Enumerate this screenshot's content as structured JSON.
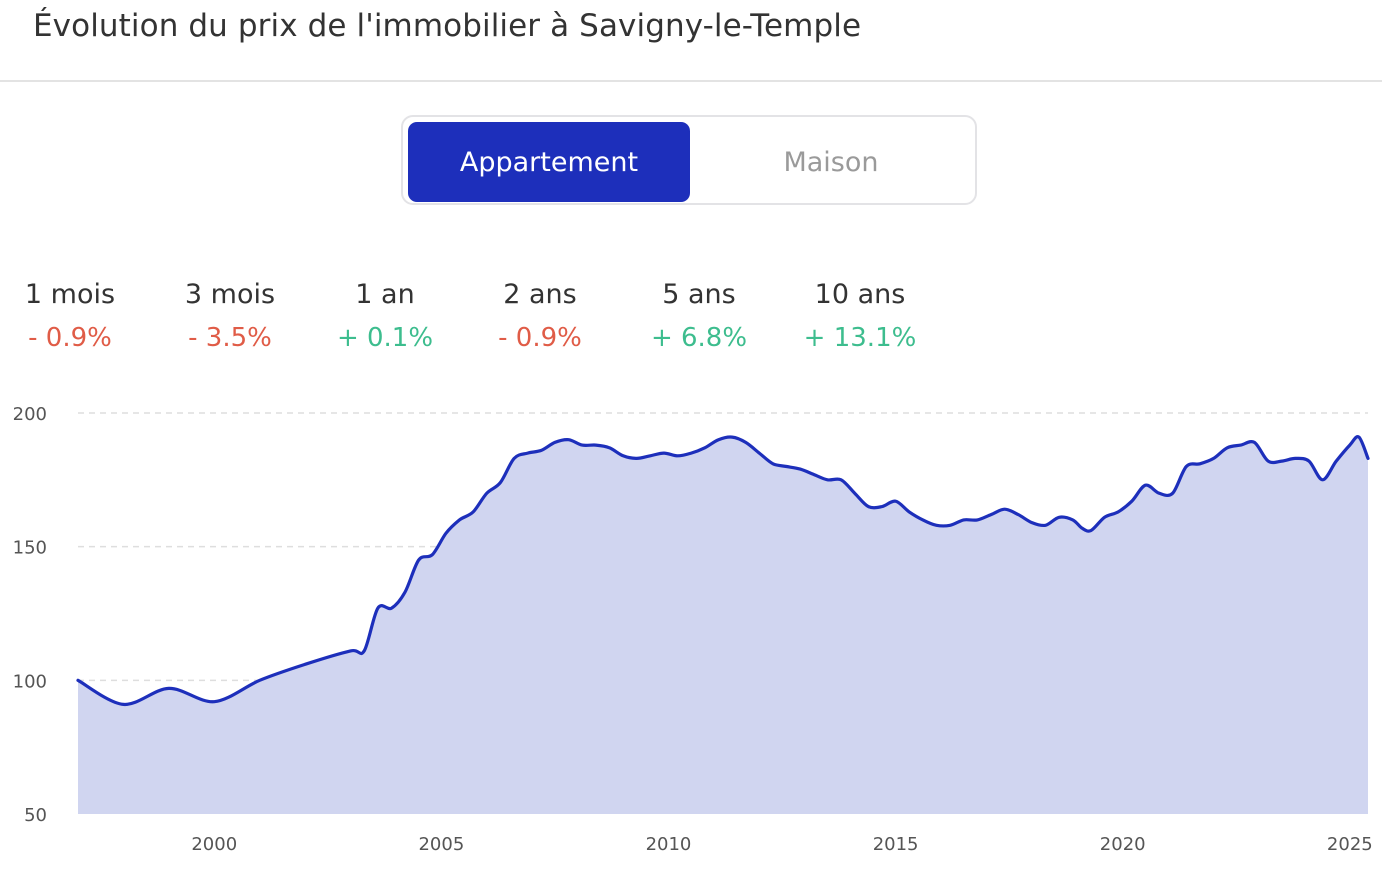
{
  "title": "Évolution du prix de l'immobilier à Savigny-le-Temple",
  "toggle": {
    "active_label": "Appartement",
    "inactive_label": "Maison",
    "selected": "Appartement"
  },
  "stats": [
    {
      "label": "1 mois",
      "value": "- 0.9%",
      "trend": "negative"
    },
    {
      "label": "3 mois",
      "value": "- 3.5%",
      "trend": "negative"
    },
    {
      "label": "1 an",
      "value": "+ 0.1%",
      "trend": "positive"
    },
    {
      "label": "2 ans",
      "value": "- 0.9%",
      "trend": "negative"
    },
    {
      "label": "5 ans",
      "value": "+ 6.8%",
      "trend": "positive"
    },
    {
      "label": "10 ans",
      "value": "+ 13.1%",
      "trend": "positive"
    }
  ],
  "colors": {
    "line": "#1d2fbb",
    "area": "#d0d5f0",
    "negative": "#e05c47",
    "positive": "#3dbd8e",
    "grid": "#dedede"
  },
  "chart_data": {
    "type": "area",
    "title": "",
    "xlabel": "",
    "ylabel": "",
    "xlim": [
      1997.0,
      2025.4
    ],
    "ylim": [
      50,
      200
    ],
    "yticks": [
      50,
      100,
      150,
      200
    ],
    "xticks": [
      2000,
      2005,
      2010,
      2015,
      2020,
      2025
    ],
    "grid": "horizontal dashed",
    "series": [
      {
        "x": [
          1997.0,
          1998.0,
          1999.0,
          2000.0,
          2001.0,
          2002.0,
          2003.0,
          2003.3,
          2003.6,
          2003.9,
          2004.2,
          2004.5,
          2004.8,
          2005.1,
          2005.4,
          2005.7,
          2006.0,
          2006.3,
          2006.6,
          2006.9,
          2007.2,
          2007.5,
          2007.8,
          2008.1,
          2008.4,
          2008.7,
          2009.0,
          2009.3,
          2009.6,
          2009.9,
          2010.2,
          2010.5,
          2010.8,
          2011.1,
          2011.4,
          2011.7,
          2012.0,
          2012.3,
          2012.6,
          2012.9,
          2013.2,
          2013.5,
          2013.8,
          2014.1,
          2014.4,
          2014.7,
          2015.0,
          2015.3,
          2015.6,
          2015.9,
          2016.2,
          2016.5,
          2016.8,
          2017.1,
          2017.4,
          2017.7,
          2018.0,
          2018.3,
          2018.6,
          2018.9,
          2019.1,
          2019.3,
          2019.6,
          2019.9,
          2020.2,
          2020.5,
          2020.8,
          2021.1,
          2021.4,
          2021.7,
          2022.0,
          2022.3,
          2022.6,
          2022.9,
          2023.2,
          2023.5,
          2023.8,
          2024.1,
          2024.4,
          2024.7,
          2025.0,
          2025.2,
          2025.4
        ],
        "values": [
          100,
          91,
          97,
          92,
          100,
          106,
          111,
          111,
          127,
          127,
          133,
          145,
          147,
          155,
          160,
          163,
          170,
          174,
          183,
          185,
          186,
          189,
          190,
          188,
          188,
          187,
          184,
          183,
          184,
          185,
          184,
          185,
          187,
          190,
          191,
          189,
          185,
          181,
          180,
          179,
          177,
          175,
          175,
          170,
          165,
          165,
          167,
          163,
          160,
          158,
          158,
          160,
          160,
          162,
          164,
          162,
          159,
          158,
          161,
          160,
          157,
          156,
          161,
          163,
          167,
          173,
          170,
          170,
          180,
          181,
          183,
          187,
          188,
          189,
          182,
          182,
          183,
          182,
          175,
          182,
          188,
          191,
          183
        ]
      }
    ]
  }
}
